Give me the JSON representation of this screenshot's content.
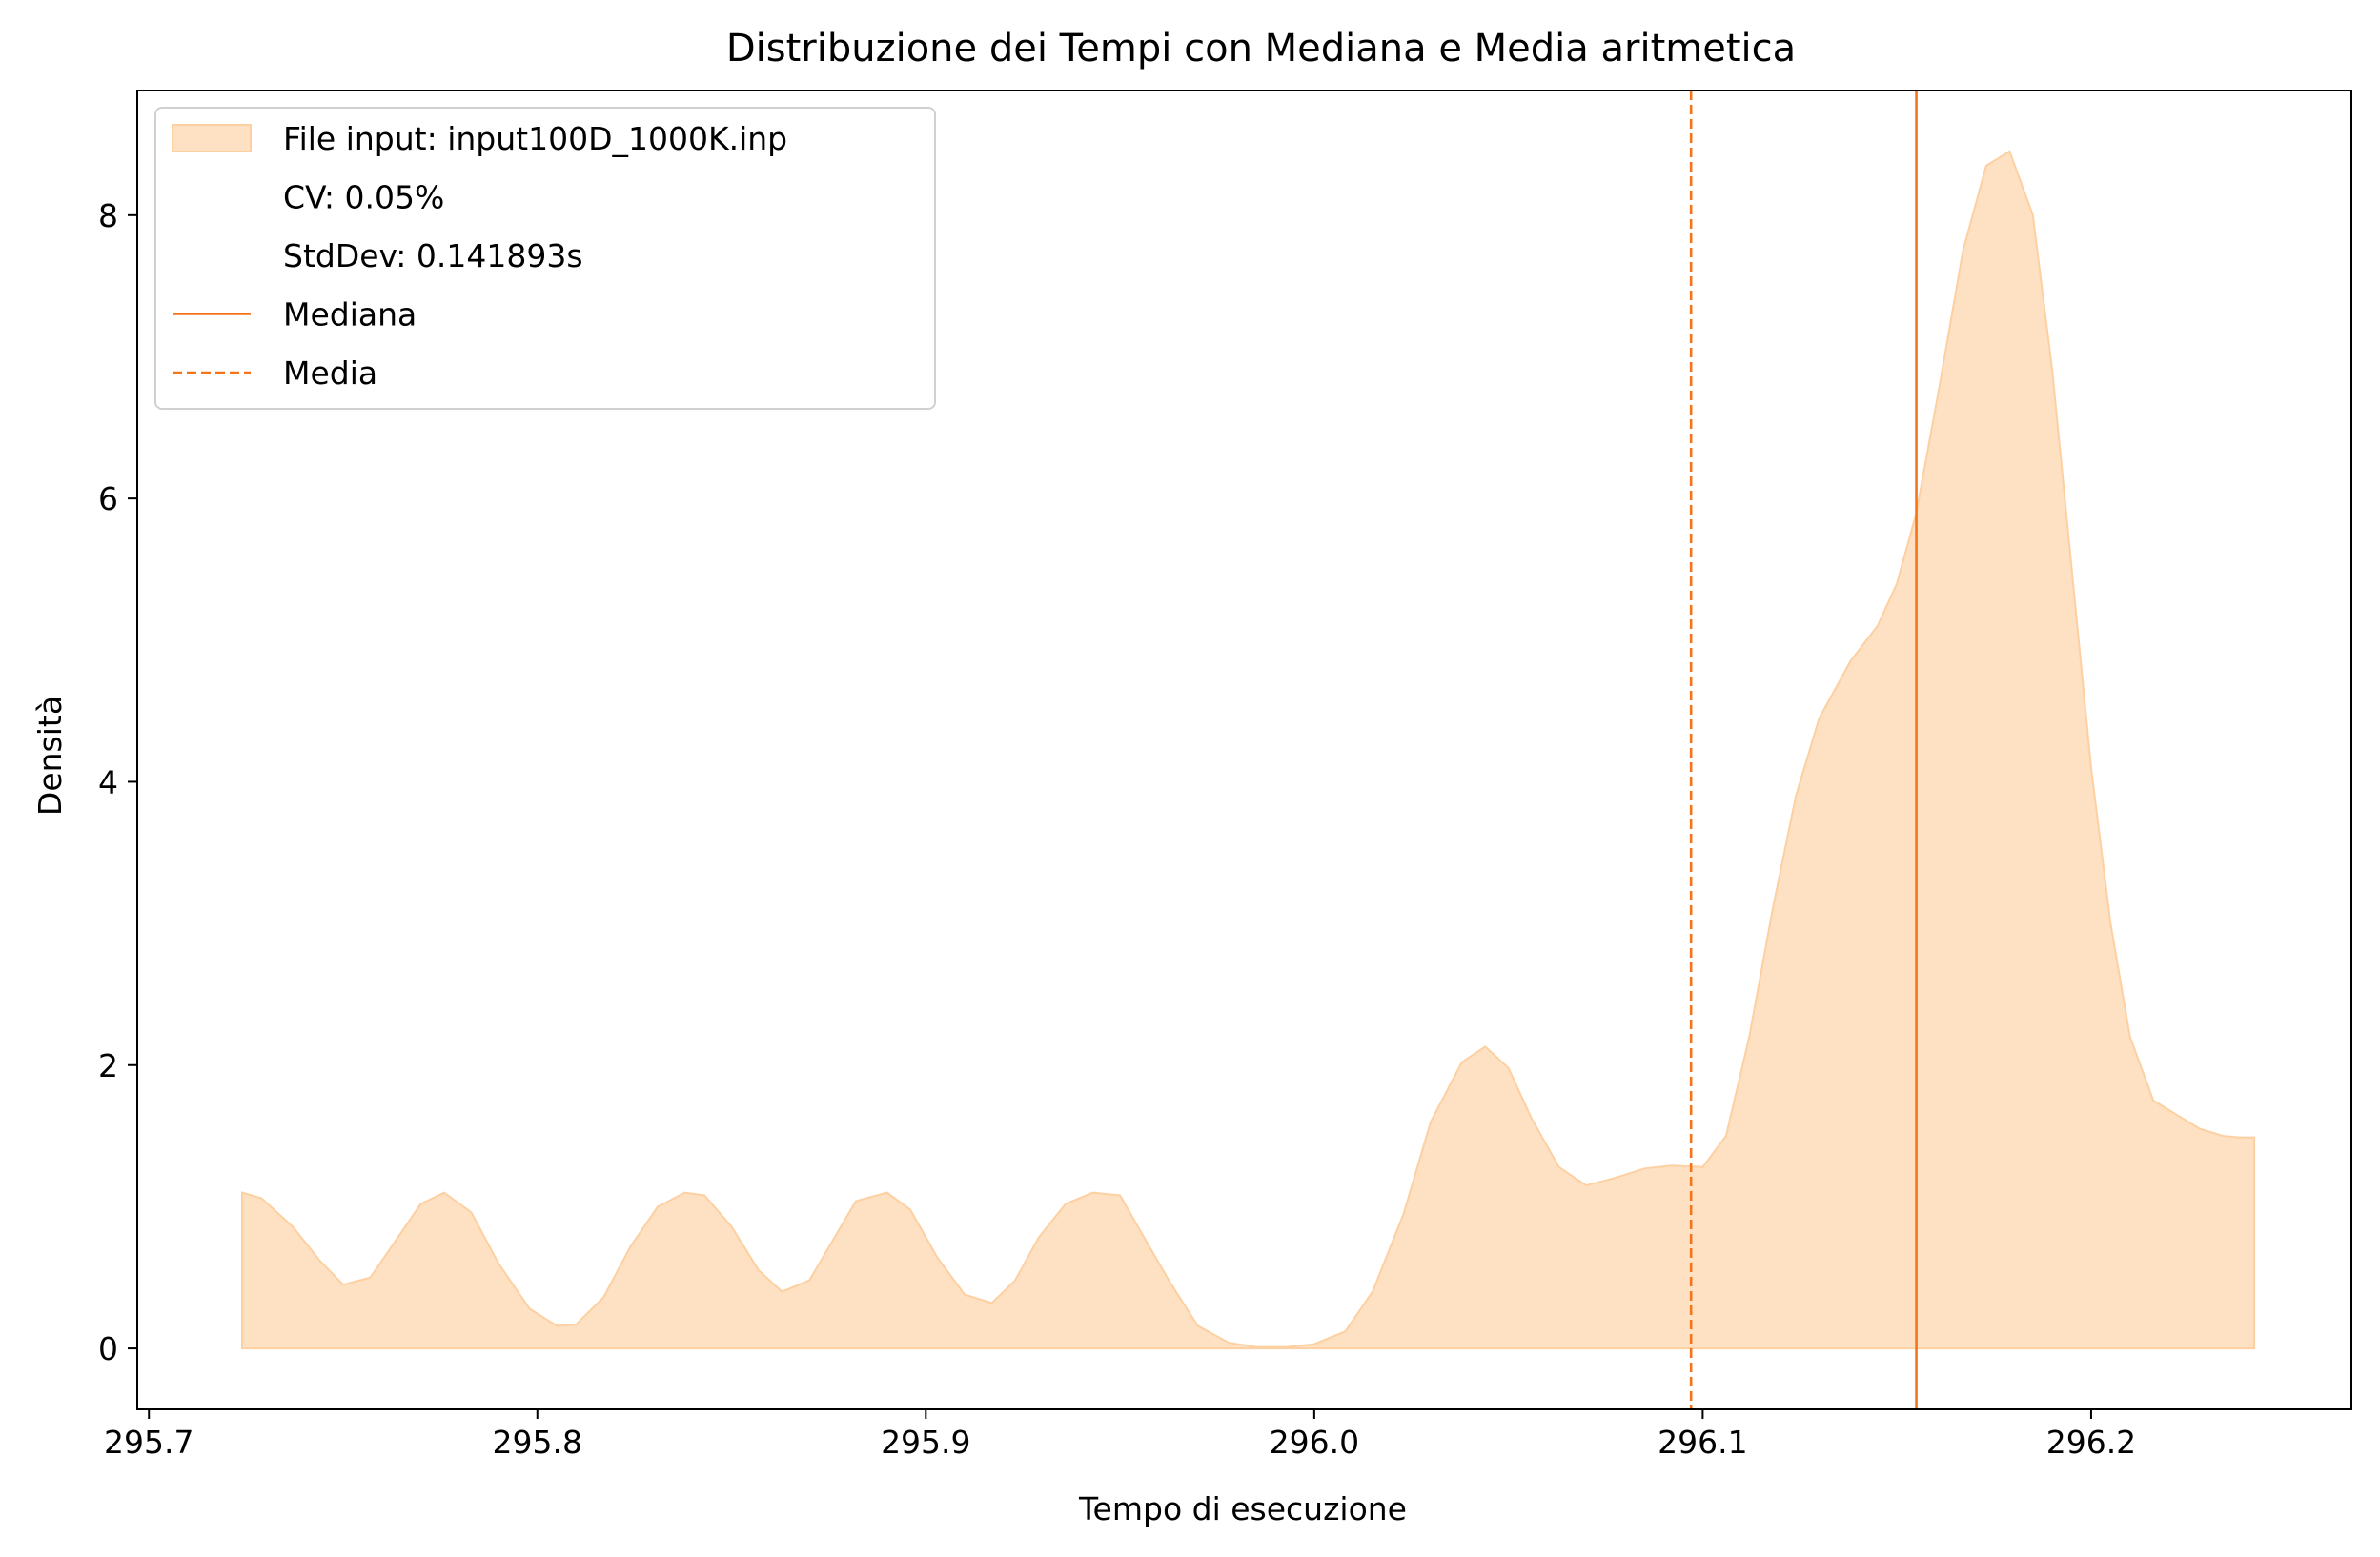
{
  "chart_data": {
    "type": "area",
    "title": "Distribuzione dei Tempi con Mediana e Media aritmetica",
    "xlabel": "Tempo di esecuzione",
    "ylabel": "Densità",
    "xlim": [
      295.697,
      296.267
    ],
    "ylim": [
      -0.43,
      8.88
    ],
    "xticks": [
      295.7,
      295.8,
      295.9,
      296.0,
      296.1,
      296.2
    ],
    "xtick_labels": [
      "295.7",
      "295.8",
      "295.9",
      "296.0",
      "296.1",
      "296.2"
    ],
    "yticks": [
      0,
      2,
      4,
      6,
      8
    ],
    "ytick_labels": [
      "0",
      "2",
      "4",
      "6",
      "8"
    ],
    "grid": false,
    "legend_position": "top-left",
    "series": [
      {
        "name": "File input: input100D_1000K.inp",
        "color": "#fdd0a2",
        "x": [
          295.724,
          295.729,
          295.737,
          295.744,
          295.75,
          295.757,
          295.764,
          295.77,
          295.776,
          295.783,
          295.79,
          295.798,
          295.805,
          295.81,
          295.817,
          295.824,
          295.831,
          295.838,
          295.843,
          295.85,
          295.857,
          295.863,
          295.87,
          295.876,
          295.882,
          295.89,
          295.896,
          295.903,
          295.91,
          295.917,
          295.923,
          295.929,
          295.936,
          295.943,
          295.95,
          295.955,
          295.963,
          295.97,
          295.978,
          295.985,
          295.993,
          296.0,
          296.008,
          296.015,
          296.023,
          296.03,
          296.038,
          296.044,
          296.05,
          296.056,
          296.063,
          296.07,
          296.077,
          296.085,
          296.092,
          296.1,
          296.106,
          296.112,
          296.118,
          296.124,
          296.13,
          296.138,
          296.145,
          296.15,
          296.155,
          296.161,
          296.167,
          296.173,
          296.179,
          296.185,
          296.19,
          296.195,
          296.2,
          296.205,
          296.21,
          296.216,
          296.222,
          296.228,
          296.234,
          296.238,
          296.242
        ],
        "values": [
          1.1,
          1.06,
          0.86,
          0.62,
          0.45,
          0.5,
          0.78,
          1.02,
          1.1,
          0.96,
          0.6,
          0.28,
          0.16,
          0.17,
          0.36,
          0.72,
          1.0,
          1.1,
          1.08,
          0.86,
          0.55,
          0.4,
          0.48,
          0.76,
          1.04,
          1.1,
          0.98,
          0.64,
          0.38,
          0.32,
          0.48,
          0.78,
          1.02,
          1.1,
          1.08,
          0.84,
          0.46,
          0.16,
          0.04,
          0.01,
          0.01,
          0.03,
          0.12,
          0.4,
          0.95,
          1.6,
          2.02,
          2.13,
          1.98,
          1.62,
          1.28,
          1.15,
          1.2,
          1.27,
          1.29,
          1.28,
          1.5,
          2.2,
          3.1,
          3.9,
          4.45,
          4.85,
          5.1,
          5.4,
          5.9,
          6.8,
          7.75,
          8.35,
          8.45,
          8.0,
          6.9,
          5.5,
          4.1,
          3.0,
          2.2,
          1.75,
          1.65,
          1.55,
          1.5,
          1.49,
          1.49
        ]
      }
    ],
    "lines": [
      {
        "name": "Mediana",
        "x": 296.155,
        "style": "solid",
        "color": "#f5741a"
      },
      {
        "name": "Media",
        "x": 296.097,
        "style": "dashed",
        "color": "#f5741a"
      }
    ],
    "legend_entries": [
      {
        "label": "File input: input100D_1000K.inp",
        "kind": "patch"
      },
      {
        "label": "CV: 0.05%",
        "kind": "none"
      },
      {
        "label": "StdDev: 0.141893s",
        "kind": "none"
      },
      {
        "label": "Mediana",
        "kind": "solid"
      },
      {
        "label": "Media",
        "kind": "dashed"
      }
    ]
  }
}
